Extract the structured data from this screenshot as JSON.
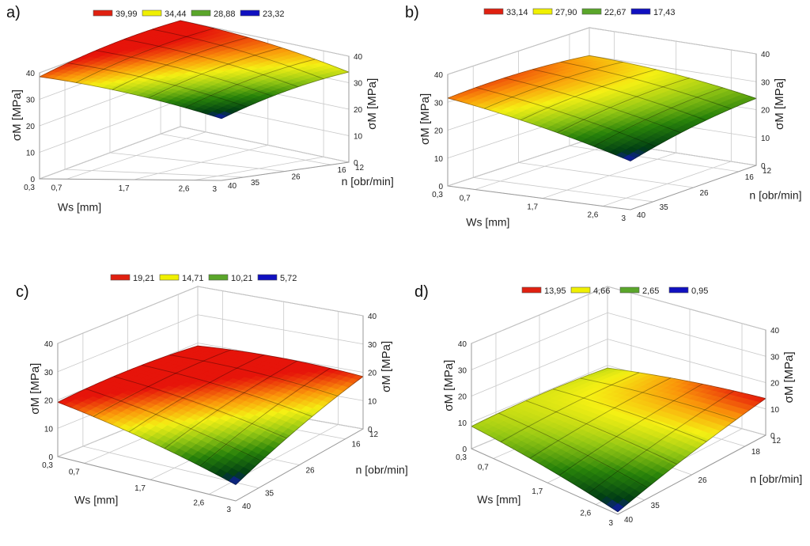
{
  "chart_data": [
    {
      "type": "surface",
      "panel": "a)",
      "xlabel": "Ws [mm]",
      "ylabel": "n [obr/min]",
      "zlabel": "σM [MPa]",
      "x_ticks": [
        "0,3",
        "0,7",
        "1,7",
        "2,6",
        "3"
      ],
      "y_ticks": [
        "12",
        "16",
        "26",
        "35",
        "40"
      ],
      "z_ticks": [
        "0",
        "10",
        "20",
        "30",
        "40"
      ],
      "zlim": [
        0,
        40
      ],
      "legend": [
        {
          "label": "39,99",
          "color": "#e02010"
        },
        {
          "label": "34,44",
          "color": "#f0f000"
        },
        {
          "label": "28,88",
          "color": "#5aa62a"
        },
        {
          "label": "23,32",
          "color": "#1010c0"
        }
      ],
      "corners": {
        "ws_min_n_min": 39.99,
        "ws_min_n_max": 38.5,
        "ws_max_n_min": 34.0,
        "ws_max_n_max": 23.32
      },
      "ridge": 2.5,
      "zmin": 23.32,
      "zmax": 39.99
    },
    {
      "type": "surface",
      "panel": "b)",
      "xlabel": "Ws [mm]",
      "ylabel": "n [obr/min]",
      "zlabel": "σM [MPa]",
      "x_ticks": [
        "0,3",
        "0,7",
        "1,7",
        "2,6",
        "3"
      ],
      "y_ticks": [
        "12",
        "16",
        "26",
        "35",
        "40"
      ],
      "z_ticks": [
        "0",
        "10",
        "20",
        "30",
        "40"
      ],
      "zlim": [
        0,
        40
      ],
      "legend": [
        {
          "label": "33,14",
          "color": "#e02010"
        },
        {
          "label": "27,90",
          "color": "#f0f000"
        },
        {
          "label": "22,67",
          "color": "#5aa62a"
        },
        {
          "label": "17,43",
          "color": "#1010c0"
        }
      ],
      "corners": {
        "ws_min_n_min": 30.0,
        "ws_min_n_max": 31.5,
        "ws_max_n_min": 24.0,
        "ws_max_n_max": 17.43
      },
      "ridge": 2.0,
      "zmin": 17.43,
      "zmax": 33.14
    },
    {
      "type": "surface",
      "panel": "c)",
      "xlabel": "Ws [mm]",
      "ylabel": "n [obr/min]",
      "zlabel": "σM [MPa]",
      "x_ticks": [
        "0,3",
        "0,7",
        "1,7",
        "2,6",
        "3"
      ],
      "y_ticks": [
        "12",
        "16",
        "26",
        "35",
        "40"
      ],
      "z_ticks": [
        "0",
        "10",
        "20",
        "30",
        "40"
      ],
      "zlim": [
        0,
        40
      ],
      "legend": [
        {
          "label": "19,21",
          "color": "#e02010"
        },
        {
          "label": "14,71",
          "color": "#f0f000"
        },
        {
          "label": "10,21",
          "color": "#5aa62a"
        },
        {
          "label": "5,72",
          "color": "#1010c0"
        }
      ],
      "corners": {
        "ws_min_n_min": 19.0,
        "ws_min_n_max": 19.21,
        "ws_max_n_min": 18.5,
        "ws_max_n_max": 5.72
      },
      "ridge": 2.0,
      "zmin": 5.72,
      "zmax": 19.21
    },
    {
      "type": "surface",
      "panel": "d)",
      "xlabel": "Ws [mm]",
      "ylabel": "n [obr/min]",
      "zlabel": "σM [MPa]",
      "x_ticks": [
        "0,3",
        "0,7",
        "1,7",
        "2,6",
        "3"
      ],
      "y_ticks": [
        "12",
        "18",
        "26",
        "35",
        "40"
      ],
      "z_ticks": [
        "0",
        "10",
        "20",
        "30",
        "40"
      ],
      "zlim": [
        0,
        40
      ],
      "legend": [
        {
          "label": "13,95",
          "color": "#e02010"
        },
        {
          "label": "4,66",
          "color": "#f0f000"
        },
        {
          "label": "2,65",
          "color": "#5aa62a"
        },
        {
          "label": "0,95",
          "color": "#1010c0"
        }
      ],
      "corners": {
        "ws_min_n_min": 9.0,
        "ws_min_n_max": 8.5,
        "ws_max_n_min": 13.95,
        "ws_max_n_max": 0.95
      },
      "ridge": 1.5,
      "zmin": 0.95,
      "zmax": 13.95
    }
  ]
}
